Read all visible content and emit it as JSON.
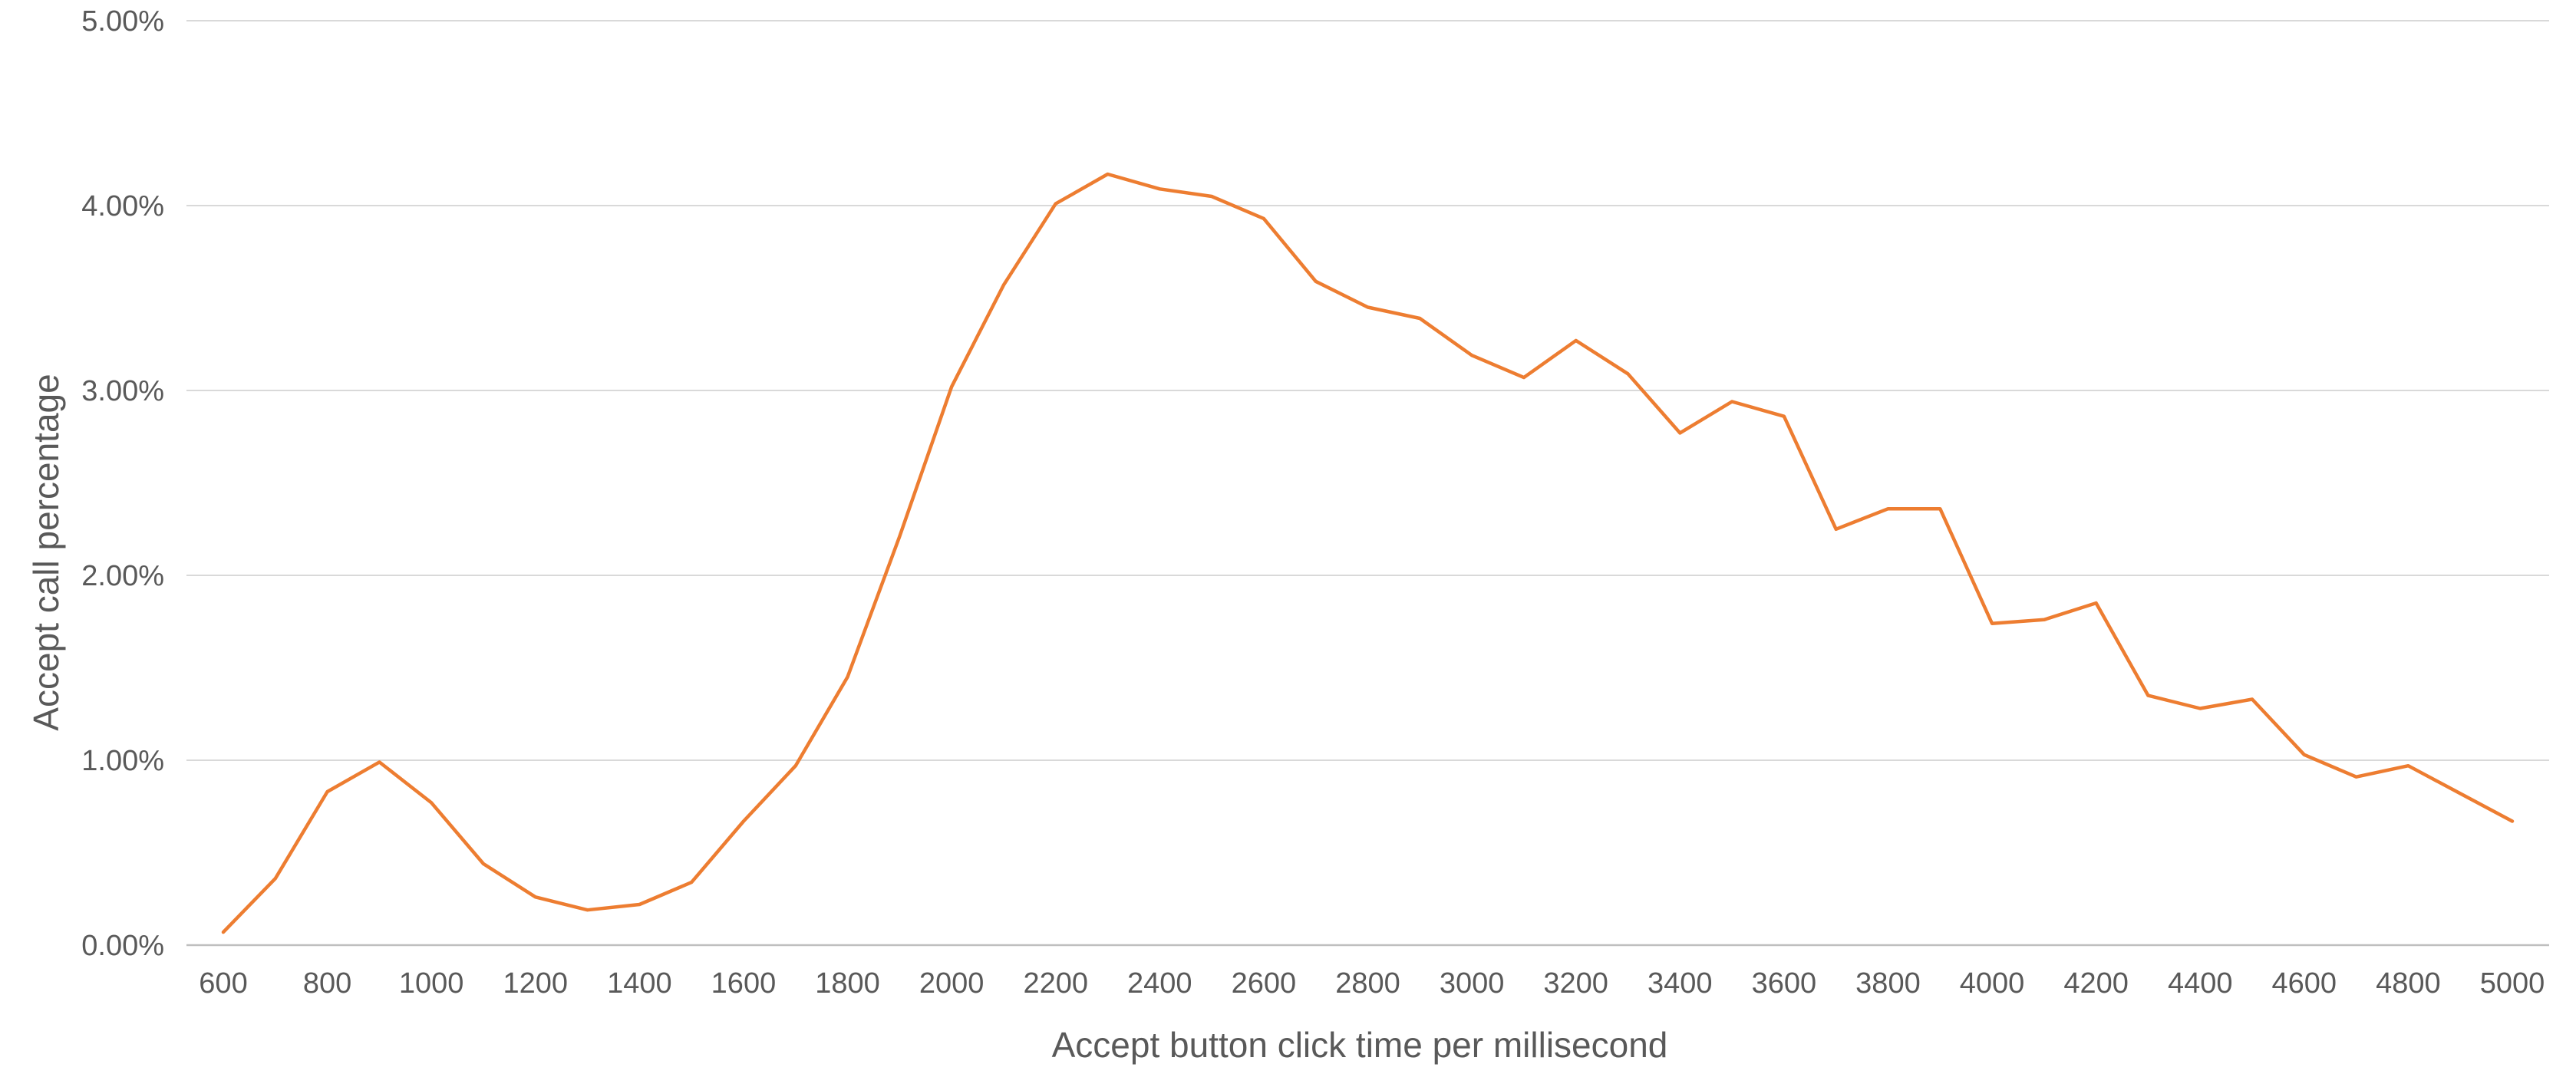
{
  "chart_data": {
    "type": "line",
    "title": "",
    "xlabel": "Accept button click time per millisecond",
    "ylabel": "Accept call percentage",
    "x": [
      600,
      700,
      800,
      900,
      1000,
      1100,
      1200,
      1300,
      1400,
      1500,
      1600,
      1700,
      1800,
      1900,
      2000,
      2100,
      2200,
      2300,
      2400,
      2500,
      2600,
      2700,
      2800,
      2900,
      3000,
      3100,
      3200,
      3300,
      3400,
      3500,
      3600,
      3700,
      3800,
      3900,
      4000,
      4100,
      4200,
      4300,
      4400,
      4500,
      4600,
      4700,
      4800,
      4900,
      5000
    ],
    "x_tick_labels": [
      "600",
      "800",
      "1000",
      "1200",
      "1400",
      "1600",
      "1800",
      "2000",
      "2200",
      "2400",
      "2600",
      "2800",
      "3000",
      "3200",
      "3400",
      "3600",
      "3800",
      "4000",
      "4200",
      "4400",
      "4600",
      "4800",
      "5000"
    ],
    "xlim": [
      600,
      5000
    ],
    "y_tick_labels": [
      "0.00%",
      "1.00%",
      "2.00%",
      "3.00%",
      "4.00%",
      "5.00%"
    ],
    "ylim": [
      0,
      5
    ],
    "grid": true,
    "line_color": "#ED7D31",
    "grid_color": "#D9D9D9",
    "series": [
      {
        "values": [
          0.07,
          0.36,
          0.83,
          0.99,
          0.77,
          0.44,
          0.26,
          0.19,
          0.22,
          0.34,
          0.67,
          0.97,
          1.45,
          2.21,
          3.02,
          3.57,
          4.01,
          4.17,
          4.09,
          4.05,
          3.93,
          3.59,
          3.45,
          3.39,
          3.19,
          3.07,
          3.27,
          3.09,
          2.77,
          2.94,
          2.86,
          2.25,
          2.36,
          2.36,
          1.74,
          1.76,
          1.85,
          1.35,
          1.28,
          1.33,
          1.03,
          0.91,
          0.97,
          0.82,
          0.67
        ]
      }
    ]
  }
}
